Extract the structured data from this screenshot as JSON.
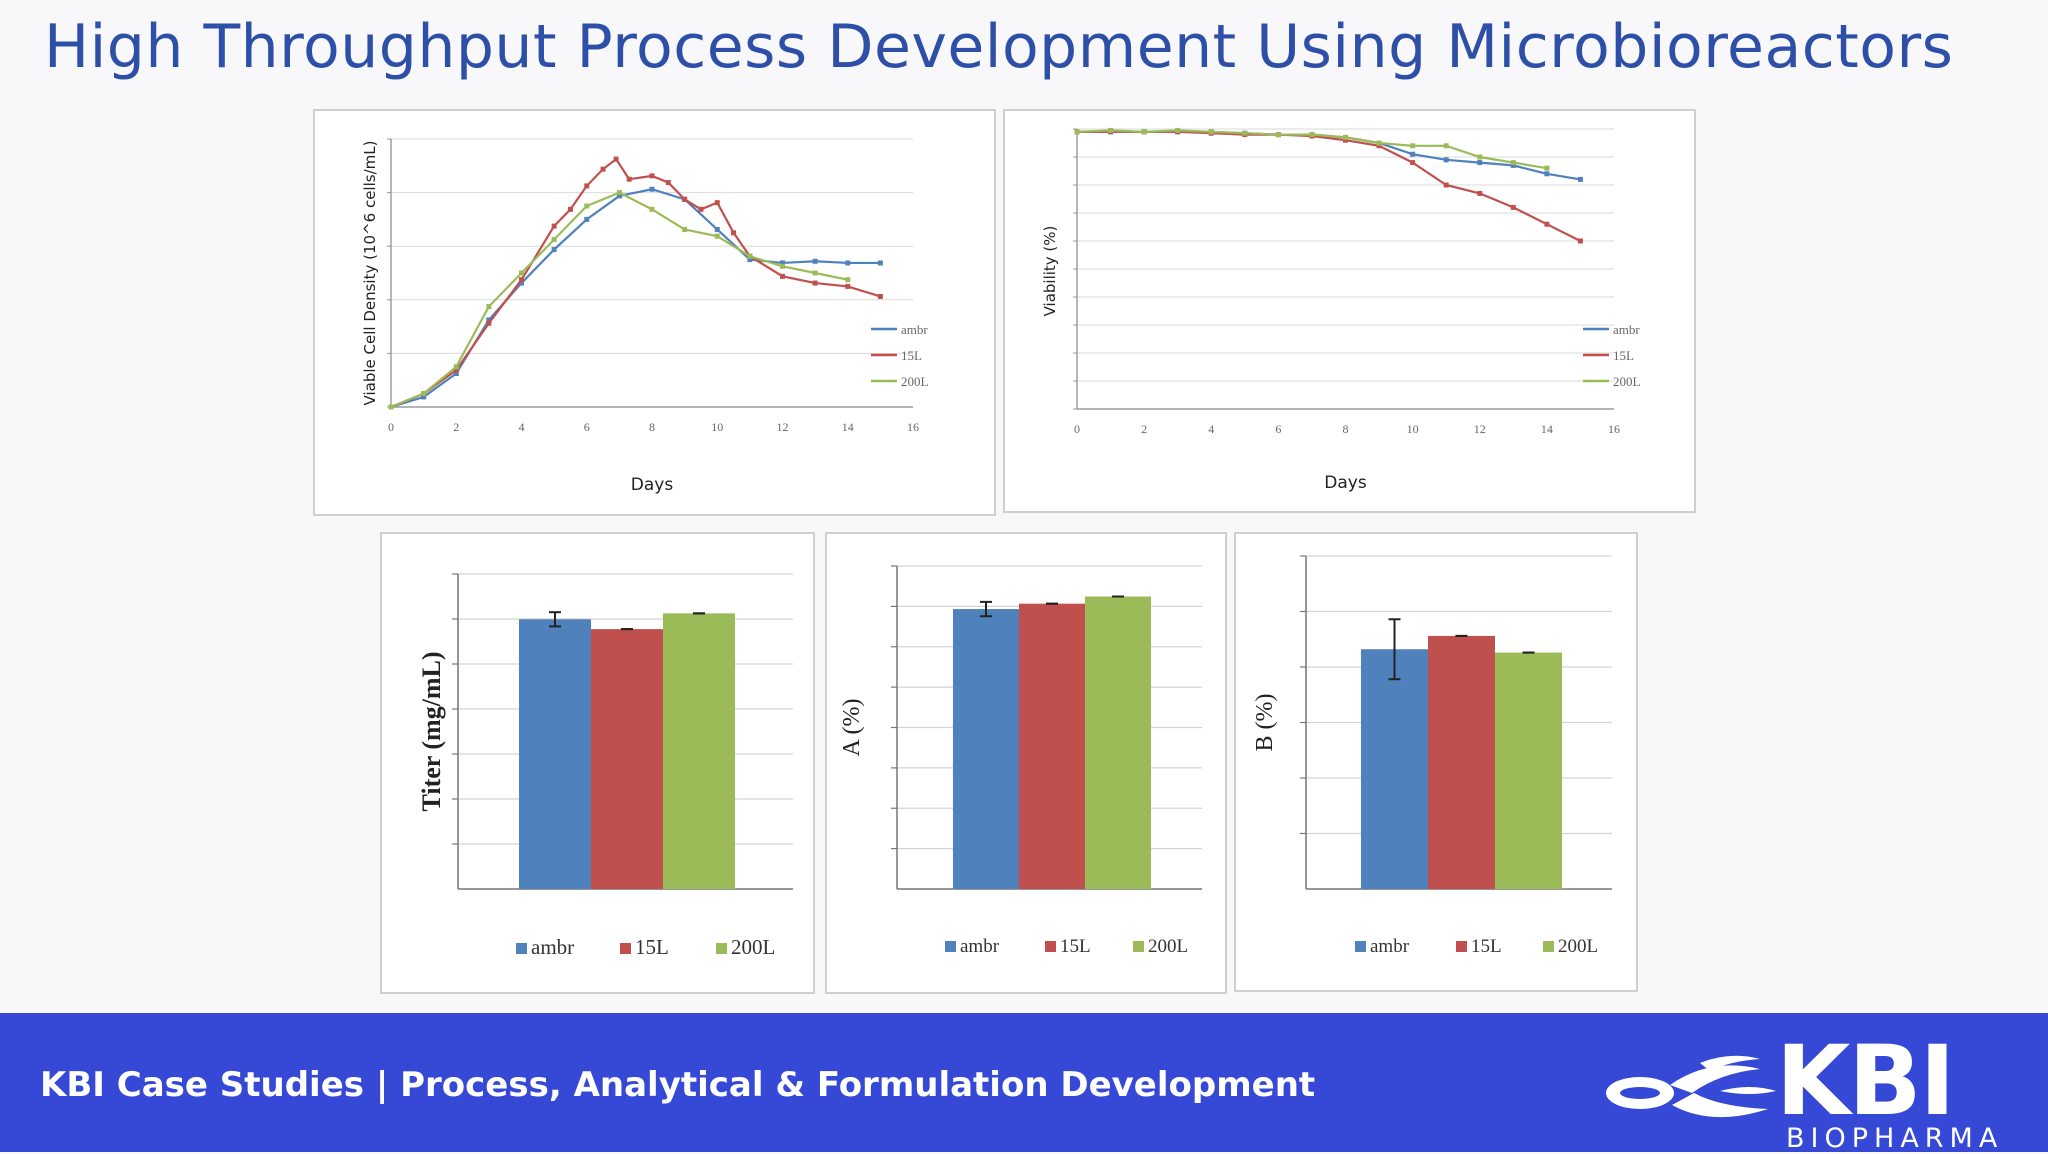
{
  "title": "High Throughput Process Development Using Microbioreactors",
  "footer": {
    "text": "KBI Case Studies | Process, Analytical & Formulation Development",
    "logo_main": "KBI",
    "logo_sub": "BIOPHARMA",
    "logo_icon": "kbi-swirl-logo"
  },
  "colors": {
    "ambr": "#4f81bd",
    "15L": "#c0504d",
    "200L": "#9bbb59",
    "title": "#2e4fa8",
    "footer": "#3548d6"
  },
  "chart_data": [
    {
      "type": "line",
      "xlabel": "Days",
      "ylabel": "Viable Cell Density (10^6 cells/mL)",
      "xlim": [
        0,
        16
      ],
      "ylim": [
        0,
        8
      ],
      "x_ticks": [
        "0",
        "2",
        "4",
        "6",
        "8",
        "10",
        "12",
        "14",
        "16"
      ],
      "grid": true,
      "legend_position": "bottom-right",
      "series": [
        {
          "name": "ambr",
          "x": [
            0,
            1,
            2,
            3,
            4,
            5,
            6,
            7,
            8,
            9,
            10,
            11,
            12,
            13,
            14,
            15
          ],
          "y": [
            0,
            0.3,
            1.0,
            2.6,
            3.7,
            4.7,
            5.6,
            6.3,
            6.5,
            6.2,
            5.3,
            4.4,
            4.3,
            4.35,
            4.3,
            4.3
          ]
        },
        {
          "name": "15L",
          "x": [
            0,
            1,
            2,
            3,
            4,
            5,
            5.5,
            6,
            6.5,
            6.9,
            7.3,
            8,
            8.5,
            9,
            9.5,
            10,
            10.5,
            11,
            12,
            13,
            14,
            15
          ],
          "y": [
            0,
            0.4,
            1.1,
            2.5,
            3.8,
            5.4,
            5.9,
            6.6,
            7.1,
            7.4,
            6.8,
            6.9,
            6.7,
            6.2,
            5.9,
            6.1,
            5.2,
            4.5,
            3.9,
            3.7,
            3.6,
            3.3
          ]
        },
        {
          "name": "200L",
          "x": [
            0,
            1,
            2,
            3,
            4,
            5,
            6,
            7,
            8,
            9,
            10,
            11,
            12,
            13,
            14
          ],
          "y": [
            0,
            0.4,
            1.2,
            3.0,
            4.0,
            5.0,
            6.0,
            6.4,
            5.9,
            5.3,
            5.1,
            4.5,
            4.2,
            4.0,
            3.8
          ]
        }
      ]
    },
    {
      "type": "line",
      "xlabel": "Days",
      "ylabel": "Viability (%)",
      "xlim": [
        0,
        16
      ],
      "ylim": [
        0,
        100
      ],
      "x_ticks": [
        "0",
        "2",
        "4",
        "6",
        "8",
        "10",
        "12",
        "14",
        "16"
      ],
      "grid": true,
      "legend_position": "bottom-right",
      "series": [
        {
          "name": "ambr",
          "x": [
            0,
            1,
            2,
            3,
            4,
            5,
            6,
            7,
            8,
            9,
            10,
            11,
            12,
            13,
            14,
            15
          ],
          "y": [
            99,
            99,
            99,
            99,
            99,
            98.5,
            98,
            98,
            97,
            95,
            91,
            89,
            88,
            87,
            84,
            82
          ]
        },
        {
          "name": "15L",
          "x": [
            0,
            1,
            2,
            3,
            4,
            5,
            6,
            7,
            8,
            9,
            10,
            11,
            12,
            13,
            14,
            15
          ],
          "y": [
            99,
            99,
            99,
            99,
            98.5,
            98,
            98,
            97.5,
            96,
            94,
            88,
            80,
            77,
            72,
            66,
            60
          ]
        },
        {
          "name": "200L",
          "x": [
            0,
            1,
            2,
            3,
            4,
            5,
            6,
            7,
            8,
            9,
            10,
            11,
            12,
            13,
            14
          ],
          "y": [
            99,
            99.5,
            99,
            99.5,
            99,
            98.5,
            98,
            98,
            97,
            95,
            94,
            94,
            90,
            88,
            86
          ]
        }
      ]
    },
    {
      "type": "bar",
      "ylabel": "Titer (mg/mL)",
      "categories": [
        "ambr",
        "15L",
        "200L"
      ],
      "values": [
        6.85,
        6.6,
        7.0
      ],
      "errors": [
        0.18,
        0,
        0
      ],
      "ylim": [
        0,
        8
      ],
      "grid": true,
      "legend_position": "bottom"
    },
    {
      "type": "bar",
      "ylabel": "A (%)",
      "categories": [
        "ambr",
        "15L",
        "200L"
      ],
      "values": [
        7.8,
        7.95,
        8.15
      ],
      "errors": [
        0.2,
        0,
        0
      ],
      "ylim": [
        0,
        9
      ],
      "grid": true,
      "legend_position": "bottom"
    },
    {
      "type": "bar",
      "ylabel": "B (%)",
      "categories": [
        "ambr",
        "15L",
        "200L"
      ],
      "values": [
        3.6,
        3.8,
        3.55
      ],
      "errors": [
        0.45,
        0,
        0
      ],
      "ylim": [
        0,
        5
      ],
      "grid": true,
      "legend_position": "bottom"
    }
  ]
}
